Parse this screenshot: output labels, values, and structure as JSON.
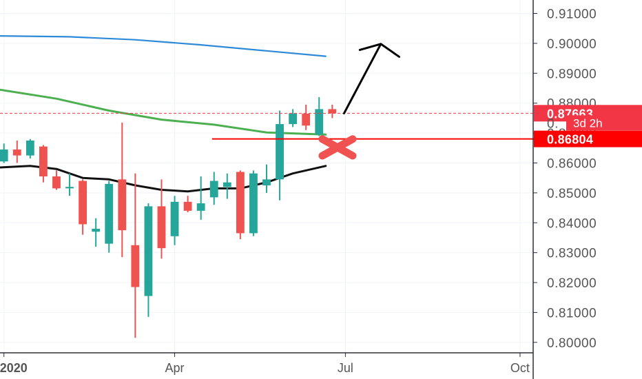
{
  "chart_data": {
    "type": "candlestick",
    "interval": "weekly",
    "y_axis": {
      "ticks": [
        "0.91000",
        "0.90000",
        "0.89000",
        "0.88000",
        "0.87000",
        "0.86000",
        "0.85000",
        "0.84000",
        "0.83000",
        "0.82000",
        "0.81000",
        "0.80000"
      ],
      "range": [
        0.7965,
        0.9145
      ]
    },
    "x_axis": {
      "ticks": [
        "2020",
        "Apr",
        "Jul",
        "Oct"
      ],
      "range_weeks": [
        -0.3,
        40.3
      ]
    },
    "candles": [
      {
        "o": 0.8605,
        "h": 0.8665,
        "l": 0.86,
        "c": 0.8645
      },
      {
        "o": 0.8645,
        "h": 0.8675,
        "l": 0.86,
        "c": 0.8625
      },
      {
        "o": 0.8625,
        "h": 0.868,
        "l": 0.8615,
        "c": 0.8675
      },
      {
        "o": 0.8655,
        "h": 0.866,
        "l": 0.8535,
        "c": 0.8555
      },
      {
        "o": 0.8555,
        "h": 0.8575,
        "l": 0.851,
        "c": 0.8515
      },
      {
        "o": 0.8515,
        "h": 0.8565,
        "l": 0.849,
        "c": 0.852
      },
      {
        "o": 0.854,
        "h": 0.8545,
        "l": 0.836,
        "c": 0.8395
      },
      {
        "o": 0.837,
        "h": 0.8415,
        "l": 0.832,
        "c": 0.838
      },
      {
        "o": 0.833,
        "h": 0.854,
        "l": 0.83,
        "c": 0.853
      },
      {
        "o": 0.8545,
        "h": 0.8735,
        "l": 0.8285,
        "c": 0.8375
      },
      {
        "o": 0.8325,
        "h": 0.8565,
        "l": 0.8015,
        "c": 0.8185
      },
      {
        "o": 0.8155,
        "h": 0.8465,
        "l": 0.8085,
        "c": 0.8455
      },
      {
        "o": 0.8455,
        "h": 0.8545,
        "l": 0.828,
        "c": 0.8315
      },
      {
        "o": 0.8355,
        "h": 0.849,
        "l": 0.8325,
        "c": 0.847
      },
      {
        "o": 0.847,
        "h": 0.849,
        "l": 0.8435,
        "c": 0.844
      },
      {
        "o": 0.844,
        "h": 0.8555,
        "l": 0.841,
        "c": 0.8465
      },
      {
        "o": 0.8485,
        "h": 0.857,
        "l": 0.846,
        "c": 0.854
      },
      {
        "o": 0.852,
        "h": 0.8565,
        "l": 0.848,
        "c": 0.8535
      },
      {
        "o": 0.857,
        "h": 0.8575,
        "l": 0.8345,
        "c": 0.8365
      },
      {
        "o": 0.8365,
        "h": 0.8575,
        "l": 0.8355,
        "c": 0.8565
      },
      {
        "o": 0.8525,
        "h": 0.8595,
        "l": 0.85,
        "c": 0.8545
      },
      {
        "o": 0.8545,
        "h": 0.8775,
        "l": 0.8475,
        "c": 0.873
      },
      {
        "o": 0.873,
        "h": 0.878,
        "l": 0.872,
        "c": 0.8765
      },
      {
        "o": 0.8765,
        "h": 0.8795,
        "l": 0.871,
        "c": 0.8725
      },
      {
        "o": 0.8695,
        "h": 0.882,
        "l": 0.869,
        "c": 0.878
      },
      {
        "o": 0.878,
        "h": 0.8795,
        "l": 0.875,
        "c": 0.8766
      }
    ],
    "series": [
      {
        "color": "#2d8ad8",
        "points": [
          [
            -0.3,
            0.9025
          ],
          [
            5,
            0.9022
          ],
          [
            10,
            0.9012
          ],
          [
            15,
            0.8995
          ],
          [
            20,
            0.8975
          ],
          [
            24.5,
            0.8957
          ]
        ]
      },
      {
        "color": "#4caf50",
        "points": [
          [
            -0.3,
            0.8845
          ],
          [
            4,
            0.8815
          ],
          [
            8,
            0.8775
          ],
          [
            12,
            0.8745
          ],
          [
            16,
            0.8728
          ],
          [
            20,
            0.8702
          ],
          [
            24.5,
            0.8695
          ]
        ]
      },
      {
        "color": "#111111",
        "points": [
          [
            -0.3,
            0.8585
          ],
          [
            2,
            0.859
          ],
          [
            4,
            0.858
          ],
          [
            6,
            0.855
          ],
          [
            8,
            0.8545
          ],
          [
            10,
            0.8525
          ],
          [
            12,
            0.851
          ],
          [
            14,
            0.8505
          ],
          [
            16,
            0.8515
          ],
          [
            18,
            0.8515
          ],
          [
            20,
            0.8535
          ],
          [
            22,
            0.8565
          ],
          [
            24.5,
            0.859
          ]
        ]
      }
    ],
    "current_price": {
      "label": "0.87663",
      "value": 0.87663,
      "color": "#f23645"
    },
    "countdown": {
      "label": "3d 2h",
      "clipped_price_label": "0."
    },
    "level": {
      "label": "0.86804",
      "value": 0.86804,
      "color": "#ff0000"
    },
    "projection_arrow": {
      "color": "#000000",
      "points": [
        [
          25.9,
          0.8766
        ],
        [
          28.7,
          0.8998
        ]
      ],
      "head_wings": [
        [
          27.1,
          0.8978
        ],
        [
          30.1,
          0.8955
        ]
      ]
    },
    "rejection_mark": {
      "symbol": "✕",
      "color": "#f05252",
      "center": [
        25.4,
        0.8652
      ]
    },
    "colors": {
      "up": "#26a69a",
      "down": "#ef5350",
      "grid": "#f0f3fa",
      "axis_line": "#2a2e39",
      "text": "#555555"
    }
  }
}
